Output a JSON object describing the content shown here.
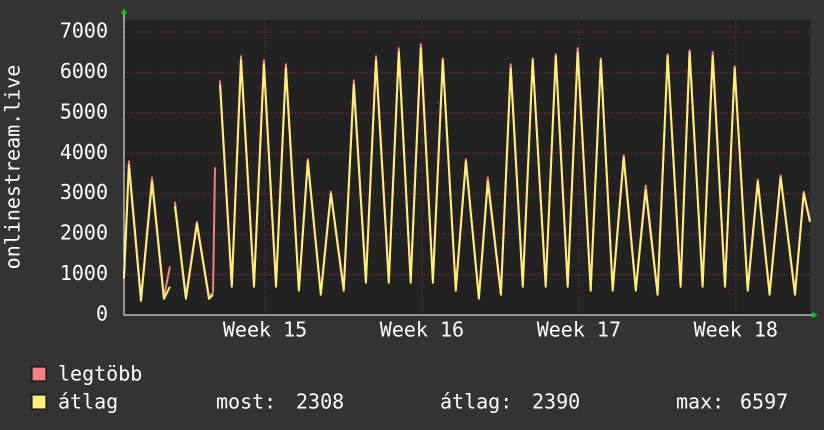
{
  "chart_data": {
    "type": "line",
    "ylabel": "onlinestream.live",
    "x": [
      0.0,
      0.22,
      0.76,
      1.25,
      1.78,
      2.05,
      2.12,
      2.27,
      2.76,
      3.25,
      3.79,
      3.97,
      4.06,
      4.15,
      4.28,
      4.81,
      5.22,
      5.8,
      6.24,
      6.78,
      7.22,
      7.8,
      8.2,
      8.78,
      9.23,
      9.8,
      10.25,
      10.79,
      11.24,
      11.81,
      12.26,
      12.79,
      13.24,
      13.78,
      14.22,
      14.8,
      15.25,
      15.83,
      16.23,
      16.81,
      17.25,
      17.79,
      18.23,
      18.81,
      19.26,
      19.79,
      20.24,
      20.82,
      21.27,
      21.8,
      22.29,
      22.83,
      23.27,
      23.8,
      24.25,
      24.83,
      25.23,
      25.81,
      26.26,
      26.81,
      27.24,
      27.82,
      28.27,
      28.8,
      29.29,
      29.93,
      30.32,
      30.6
    ],
    "series": [
      {
        "name": "legtöbb",
        "color": "#f47f87",
        "values": [
          950,
          3800,
          400,
          3400,
          450,
          1200,
          null,
          2800,
          450,
          2300,
          450,
          550,
          3650,
          null,
          5800,
          750,
          6400,
          750,
          6300,
          750,
          6200,
          650,
          3850,
          550,
          3050,
          650,
          5800,
          850,
          6400,
          850,
          6600,
          850,
          6700,
          850,
          6350,
          650,
          3850,
          450,
          3400,
          550,
          6200,
          750,
          6350,
          750,
          6450,
          750,
          6600,
          650,
          6350,
          650,
          3950,
          650,
          3200,
          550,
          6450,
          750,
          6550,
          750,
          6500,
          750,
          6150,
          650,
          3350,
          550,
          3450,
          550,
          3050,
          2350
        ]
      },
      {
        "name": "átlag",
        "color": "#fff07a",
        "values": [
          900,
          3700,
          350,
          3300,
          400,
          700,
          null,
          2700,
          400,
          2250,
          400,
          500,
          null,
          null,
          5700,
          700,
          6300,
          700,
          6200,
          700,
          6100,
          600,
          3800,
          500,
          3000,
          600,
          5700,
          800,
          6300,
          800,
          6500,
          800,
          6600,
          800,
          6300,
          600,
          3800,
          400,
          3300,
          500,
          6100,
          700,
          6300,
          700,
          6400,
          700,
          6500,
          600,
          6300,
          600,
          3900,
          600,
          3100,
          500,
          6400,
          700,
          6500,
          700,
          6400,
          700,
          6100,
          600,
          3300,
          500,
          3400,
          500,
          3000,
          2300
        ]
      }
    ],
    "xlim": [
      0,
      30.6
    ],
    "xticks": [
      {
        "value": 6.29,
        "label": "Week 15"
      },
      {
        "value": 13.29,
        "label": "Week 16"
      },
      {
        "value": 20.29,
        "label": "Week 17"
      },
      {
        "value": 27.29,
        "label": "Week 18"
      }
    ],
    "ylim": [
      0,
      7000
    ],
    "yticks": [
      0,
      1000,
      2000,
      3000,
      4000,
      5000,
      6000,
      7000
    ],
    "grid": true,
    "stats": [
      {
        "label": "most:",
        "value": 2308
      },
      {
        "label": "átlag:",
        "value": 2390
      },
      {
        "label": "max:",
        "value": 6597
      }
    ]
  }
}
